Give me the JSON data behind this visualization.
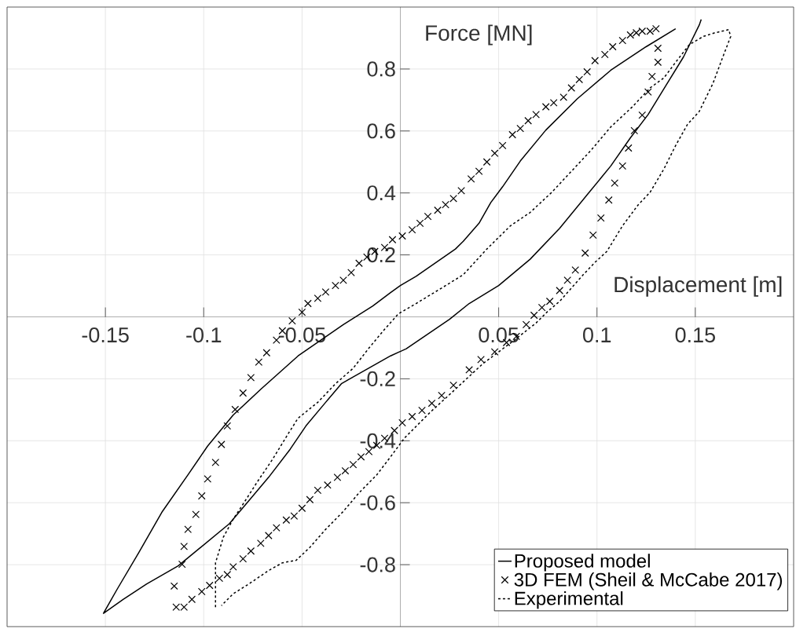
{
  "chart_data": {
    "type": "line",
    "xlabel": "Displacement [m]",
    "ylabel": "Force [MN]",
    "xlim": [
      -0.2,
      0.2
    ],
    "ylim": [
      -1,
      1
    ],
    "xticks": [
      -0.15,
      -0.1,
      -0.05,
      0.05,
      0.1,
      0.15
    ],
    "yticks": [
      -0.8,
      -0.6,
      -0.4,
      -0.2,
      0.2,
      0.4,
      0.6,
      0.8
    ],
    "grid": true,
    "legend": "bottom right",
    "series": [
      {
        "name": "Proposed model",
        "type": "line",
        "color": "#000000",
        "line_style": "solid",
        "marker": "none",
        "x": [
          0.153,
          0.152,
          0.144,
          0.135,
          0.126,
          0.117,
          0.107,
          0.095,
          0.081,
          0.066,
          0.05,
          0.035,
          0.025,
          0.003,
          -0.005,
          -0.026,
          -0.03,
          -0.038,
          -0.048,
          -0.056,
          -0.067,
          -0.077,
          -0.087,
          -0.1,
          -0.113,
          -0.129,
          -0.141,
          -0.151,
          -0.144,
          -0.133,
          -0.121,
          -0.108,
          -0.098,
          -0.085,
          -0.071,
          -0.052,
          -0.029,
          -0.014,
          -0.005,
          0,
          0.008,
          0.028,
          0.032,
          0.04,
          0.046,
          0.052,
          0.061,
          0.074,
          0.09,
          0.107,
          0.125,
          0.14
        ],
        "values": [
          0.96,
          0.942,
          0.839,
          0.746,
          0.653,
          0.578,
          0.487,
          0.394,
          0.286,
          0.186,
          0.101,
          0.043,
          -0.008,
          -0.103,
          -0.126,
          -0.201,
          -0.216,
          -0.276,
          -0.352,
          -0.427,
          -0.518,
          -0.593,
          -0.668,
          -0.736,
          -0.804,
          -0.862,
          -0.912,
          -0.957,
          -0.879,
          -0.761,
          -0.628,
          -0.51,
          -0.417,
          -0.317,
          -0.234,
          -0.126,
          -0.025,
          0.035,
          0.078,
          0.101,
          0.131,
          0.219,
          0.244,
          0.302,
          0.369,
          0.42,
          0.503,
          0.603,
          0.704,
          0.796,
          0.872,
          0.93
        ]
      },
      {
        "name": "3D FEM (Sheil & McCabe 2017)",
        "type": "scatter",
        "color": "#000000",
        "marker": "cross",
        "x": [
          -0.114,
          -0.115,
          -0.111,
          -0.11,
          -0.108,
          -0.104,
          -0.101,
          -0.098,
          -0.094,
          -0.091,
          -0.088,
          -0.084,
          -0.08,
          -0.076,
          -0.072,
          -0.068,
          -0.063,
          -0.06,
          -0.055,
          -0.05,
          -0.047,
          -0.042,
          -0.038,
          -0.033,
          -0.029,
          -0.025,
          -0.021,
          -0.017,
          -0.013,
          -0.008,
          -0.004,
          0.001,
          0.006,
          0.01,
          0.014,
          0.019,
          0.023,
          0.027,
          0.031,
          0.036,
          0.04,
          0.044,
          0.048,
          0.052,
          0.057,
          0.061,
          0.065,
          0.069,
          0.074,
          0.078,
          0.083,
          0.087,
          0.091,
          0.095,
          0.099,
          0.104,
          0.108,
          0.113,
          0.117,
          0.12,
          0.123,
          0.127,
          0.13,
          0.131,
          0.131,
          0.128,
          0.126,
          0.123,
          0.119,
          0.116,
          0.113,
          0.109,
          0.106,
          0.102,
          0.098,
          0.094,
          0.089,
          0.085,
          0.081,
          0.076,
          0.072,
          0.068,
          0.064,
          0.059,
          0.054,
          0.048,
          0.041,
          0.035,
          0.027,
          0.021,
          0.016,
          0.011,
          0.006,
          0.001,
          -0.003,
          -0.008,
          -0.012,
          -0.016,
          -0.02,
          -0.024,
          -0.028,
          -0.032,
          -0.037,
          -0.042,
          -0.046,
          -0.05,
          -0.054,
          -0.058,
          -0.063,
          -0.067,
          -0.071,
          -0.076,
          -0.08,
          -0.085,
          -0.088,
          -0.092,
          -0.097,
          -0.101,
          -0.106,
          -0.11
        ],
        "values": [
          -0.937,
          -0.869,
          -0.799,
          -0.741,
          -0.686,
          -0.638,
          -0.578,
          -0.523,
          -0.47,
          -0.412,
          -0.352,
          -0.299,
          -0.246,
          -0.196,
          -0.146,
          -0.116,
          -0.075,
          -0.045,
          -0.013,
          0.015,
          0.043,
          0.06,
          0.08,
          0.101,
          0.118,
          0.143,
          0.173,
          0.193,
          0.211,
          0.224,
          0.249,
          0.261,
          0.281,
          0.302,
          0.324,
          0.344,
          0.362,
          0.382,
          0.407,
          0.445,
          0.47,
          0.5,
          0.528,
          0.553,
          0.588,
          0.608,
          0.633,
          0.653,
          0.678,
          0.691,
          0.709,
          0.739,
          0.766,
          0.791,
          0.827,
          0.847,
          0.872,
          0.892,
          0.91,
          0.917,
          0.922,
          0.922,
          0.93,
          0.867,
          0.822,
          0.776,
          0.726,
          0.651,
          0.601,
          0.545,
          0.487,
          0.432,
          0.377,
          0.319,
          0.264,
          0.206,
          0.151,
          0.118,
          0.085,
          0.05,
          0.03,
          0.005,
          -0.025,
          -0.063,
          -0.083,
          -0.113,
          -0.138,
          -0.171,
          -0.221,
          -0.254,
          -0.279,
          -0.302,
          -0.322,
          -0.342,
          -0.367,
          -0.392,
          -0.415,
          -0.435,
          -0.452,
          -0.477,
          -0.497,
          -0.518,
          -0.543,
          -0.56,
          -0.59,
          -0.618,
          -0.643,
          -0.656,
          -0.681,
          -0.706,
          -0.731,
          -0.756,
          -0.781,
          -0.807,
          -0.832,
          -0.844,
          -0.867,
          -0.887,
          -0.912,
          -0.937
        ]
      },
      {
        "name": "Experimental",
        "type": "line",
        "color": "#000000",
        "line_style": "dashed",
        "marker": "none",
        "x": [
          -0.094,
          -0.094,
          -0.09,
          -0.085,
          -0.078,
          -0.073,
          -0.065,
          -0.057,
          -0.052,
          -0.042,
          -0.033,
          -0.024,
          -0.016,
          -0.008,
          -0.001,
          0.008,
          0.021,
          0.032,
          0.044,
          0.056,
          0.066,
          0.077,
          0.087,
          0.097,
          0.107,
          0.118,
          0.127,
          0.134,
          0.14,
          0.147,
          0.154,
          0.16,
          0.167,
          0.168,
          0.164,
          0.159,
          0.152,
          0.146,
          0.14,
          0.134,
          0.127,
          0.121,
          0.113,
          0.105,
          0.099,
          0.093,
          0.087,
          0.081,
          0.075,
          0.069,
          0.058,
          0.042,
          0.025,
          0.015,
          0.002,
          -0.005,
          -0.012,
          -0.021,
          -0.029,
          -0.038,
          -0.046,
          -0.053,
          -0.06,
          -0.067,
          -0.077,
          -0.085,
          -0.091
        ],
        "values": [
          -0.937,
          -0.794,
          -0.711,
          -0.653,
          -0.585,
          -0.535,
          -0.46,
          -0.377,
          -0.327,
          -0.276,
          -0.216,
          -0.166,
          -0.101,
          -0.04,
          0.01,
          0.043,
          0.093,
          0.136,
          0.219,
          0.294,
          0.337,
          0.402,
          0.47,
          0.538,
          0.613,
          0.678,
          0.739,
          0.771,
          0.822,
          0.879,
          0.905,
          0.917,
          0.927,
          0.905,
          0.839,
          0.754,
          0.663,
          0.621,
          0.553,
          0.477,
          0.402,
          0.362,
          0.294,
          0.211,
          0.176,
          0.136,
          0.093,
          0.05,
          0.018,
          -0.02,
          -0.075,
          -0.151,
          -0.251,
          -0.309,
          -0.392,
          -0.452,
          -0.51,
          -0.568,
          -0.628,
          -0.686,
          -0.744,
          -0.786,
          -0.794,
          -0.819,
          -0.862,
          -0.894,
          -0.932
        ]
      }
    ]
  }
}
